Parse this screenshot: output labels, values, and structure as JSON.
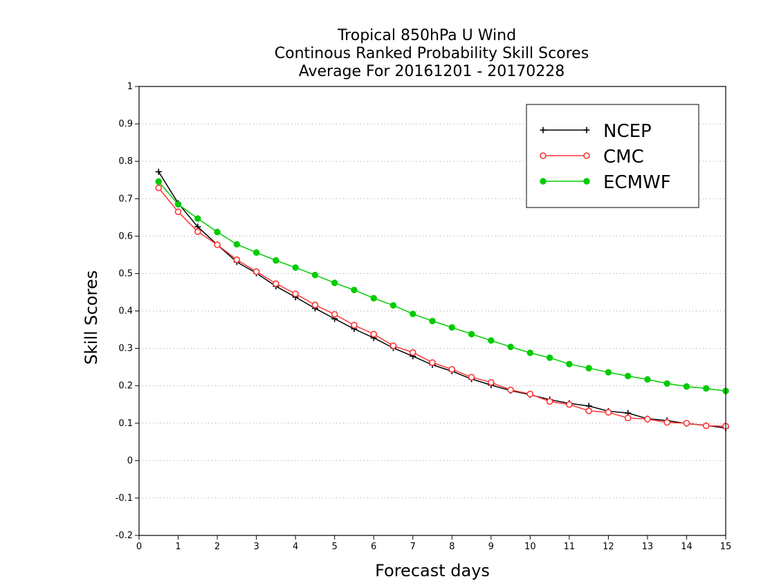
{
  "chart_data": {
    "type": "line",
    "title_lines": [
      "Tropical 850hPa U Wind",
      "Continous Ranked Probability Skill Scores",
      "Average For 20161201 - 20170228"
    ],
    "xlabel": "Forecast days",
    "ylabel": "Skill Scores",
    "xlim": [
      0,
      15
    ],
    "ylim": [
      -0.2,
      1
    ],
    "x_ticks": [
      "0",
      "1",
      "2",
      "3",
      "4",
      "5",
      "6",
      "7",
      "8",
      "9",
      "10",
      "11",
      "12",
      "13",
      "14",
      "15"
    ],
    "y_ticks": [
      "1",
      "0.9",
      "0.8",
      "0.7",
      "0.6",
      "0.5",
      "0.4",
      "0.3",
      "0.2",
      "0.1",
      "0",
      "-0.1",
      "-0.2"
    ],
    "y_tick_values": [
      1,
      0.9,
      0.8,
      0.7,
      0.6,
      0.5,
      0.4,
      0.3,
      0.2,
      0.1,
      0,
      -0.1,
      -0.2
    ],
    "grid": "dotted horizontal",
    "legend_position": "top-right",
    "x": [
      0.5,
      1,
      1.5,
      2,
      2.5,
      3,
      3.5,
      4,
      4.5,
      5,
      5.5,
      6,
      6.5,
      7,
      7.5,
      8,
      8.5,
      9,
      9.5,
      10,
      10.5,
      11,
      11.5,
      12,
      12.5,
      13,
      13.5,
      14,
      14.5,
      15
    ],
    "series": [
      {
        "name": "NCEP",
        "color": "#000000",
        "marker": "plus",
        "values": [
          0.772,
          0.688,
          0.625,
          0.577,
          0.531,
          0.501,
          0.466,
          0.437,
          0.407,
          0.379,
          0.352,
          0.328,
          0.301,
          0.279,
          0.256,
          0.239,
          0.218,
          0.202,
          0.187,
          0.176,
          0.163,
          0.153,
          0.146,
          0.132,
          0.127,
          0.112,
          0.107,
          0.099,
          0.094,
          0.087
        ]
      },
      {
        "name": "CMC",
        "color": "#ff3333",
        "marker": "open-circle",
        "values": [
          0.729,
          0.665,
          0.612,
          0.577,
          0.537,
          0.505,
          0.473,
          0.446,
          0.416,
          0.391,
          0.362,
          0.338,
          0.307,
          0.289,
          0.262,
          0.244,
          0.223,
          0.209,
          0.189,
          0.178,
          0.158,
          0.15,
          0.133,
          0.129,
          0.114,
          0.111,
          0.102,
          0.1,
          0.093,
          0.092
        ]
      },
      {
        "name": "ECMWF",
        "color": "#00cc00",
        "marker": "filled-circle",
        "values": [
          0.746,
          0.685,
          0.647,
          0.611,
          0.578,
          0.556,
          0.535,
          0.516,
          0.496,
          0.475,
          0.456,
          0.434,
          0.415,
          0.392,
          0.373,
          0.356,
          0.338,
          0.321,
          0.304,
          0.288,
          0.275,
          0.258,
          0.247,
          0.236,
          0.226,
          0.217,
          0.206,
          0.198,
          0.193,
          0.186
        ]
      }
    ]
  }
}
